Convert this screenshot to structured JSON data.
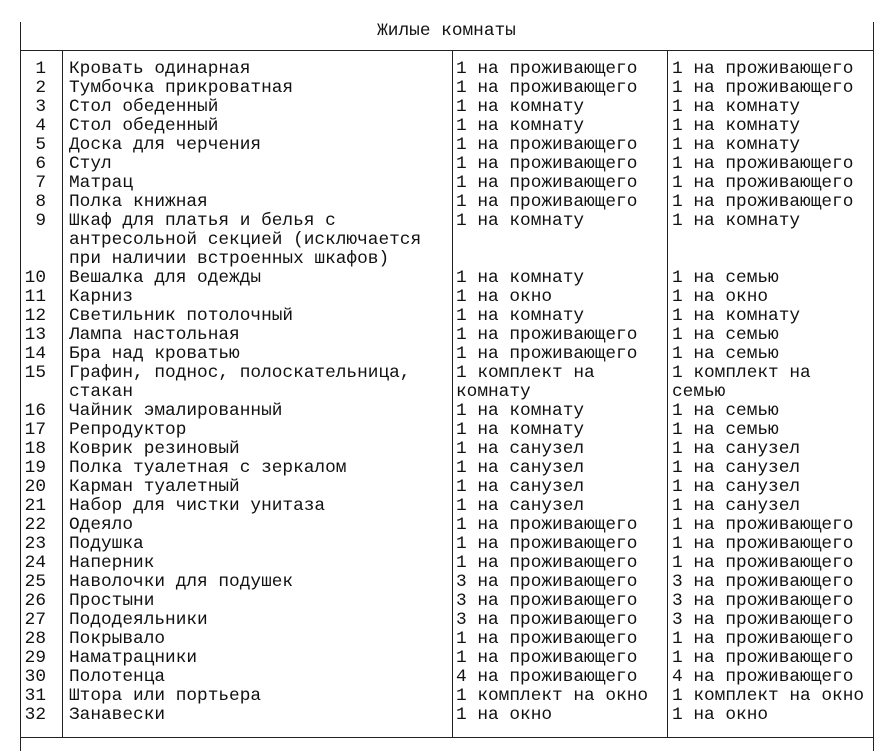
{
  "title": "Жилые комнаты",
  "rows": [
    {
      "n": "1",
      "name": "Кровать одинарная",
      "a": "1 на проживающего",
      "b": "1 на проживающего"
    },
    {
      "n": "2",
      "name": "Тумбочка прикроватная",
      "a": "1 на проживающего",
      "b": "1 на проживающего"
    },
    {
      "n": "3",
      "name": "Стол обеденный",
      "a": "1 на комнату",
      "b": "1 на комнату"
    },
    {
      "n": "4",
      "name": "Стол обеденный",
      "a": "1 на комнату",
      "b": "1 на комнату"
    },
    {
      "n": "5",
      "name": "Доска для черчения",
      "a": "1 на проживающего",
      "b": "1 на комнату"
    },
    {
      "n": "6",
      "name": "Стул",
      "a": "1 на проживающего",
      "b": "1 на проживающего"
    },
    {
      "n": "7",
      "name": "Матрац",
      "a": "1 на проживающего",
      "b": "1 на проживающего"
    },
    {
      "n": "8",
      "name": "Полка книжная",
      "a": "1 на проживающего",
      "b": "1 на проживающего"
    },
    {
      "n": "9",
      "name": "Шкаф для платья и белья с\nантресольной секцией (исключается\nпри наличии встроенных шкафов)",
      "a": "1 на комнату",
      "b": "1 на комнату"
    },
    {
      "n": "10",
      "name": "Вешалка для одежды",
      "a": "1 на комнату",
      "b": "1 на семью"
    },
    {
      "n": "11",
      "name": "Карниз",
      "a": "1 на окно",
      "b": "1 на окно"
    },
    {
      "n": "12",
      "name": "Светильник потолочный",
      "a": "1 на комнату",
      "b": "1 на комнату"
    },
    {
      "n": "13",
      "name": "Лампа настольная",
      "a": "1 на проживающего",
      "b": "1 на семью"
    },
    {
      "n": "14",
      "name": "Бра над кроватью",
      "a": "1 на проживающего",
      "b": "1 на семью"
    },
    {
      "n": "15",
      "name": "Графин, поднос, полоскательница,\nстакан",
      "a": "1 комплект на\nкомнату",
      "b": "1 комплект на\nсемью"
    },
    {
      "n": "16",
      "name": "Чайник эмалированный",
      "a": "1 на комнату",
      "b": "1 на семью"
    },
    {
      "n": "17",
      "name": "Репродуктор",
      "a": "1 на комнату",
      "b": "1 на семью"
    },
    {
      "n": "18",
      "name": "Коврик резиновый",
      "a": "1 на санузел",
      "b": "1 на санузел"
    },
    {
      "n": "19",
      "name": "Полка туалетная с зеркалом",
      "a": "1 на санузел",
      "b": "1 на санузел"
    },
    {
      "n": "20",
      "name": "Карман туалетный",
      "a": "1 на санузел",
      "b": "1 на санузел"
    },
    {
      "n": "21",
      "name": "Набор для чистки унитаза",
      "a": "1 на санузел",
      "b": "1 на санузел"
    },
    {
      "n": "22",
      "name": "Одеяло",
      "a": "1 на проживающего",
      "b": "1 на проживающего"
    },
    {
      "n": "23",
      "name": "Подушка",
      "a": "1 на проживающего",
      "b": "1 на проживающего"
    },
    {
      "n": "24",
      "name": "Наперник",
      "a": "1 на проживающего",
      "b": "1 на проживающего"
    },
    {
      "n": "25",
      "name": "Наволочки для подушек",
      "a": "3 на проживающего",
      "b": "3 на проживающего"
    },
    {
      "n": "26",
      "name": "Простыни",
      "a": "3 на проживающего",
      "b": "3 на проживающего"
    },
    {
      "n": "27",
      "name": "Пододеяльники",
      "a": "3 на проживающего",
      "b": "3 на проживающего"
    },
    {
      "n": "28",
      "name": "Покрывало",
      "a": "1 на проживающего",
      "b": "1 на проживающего"
    },
    {
      "n": "29",
      "name": "Наматрацники",
      "a": "1 на проживающего",
      "b": "1 на проживающего"
    },
    {
      "n": "30",
      "name": "Полотенца",
      "a": "4 на проживающего",
      "b": "4 на проживающего"
    },
    {
      "n": "31",
      "name": "Штора или портьера",
      "a": "1 комплект на окно",
      "b": "1 комплект на окно"
    },
    {
      "n": "32",
      "name": "Занавески",
      "a": "1 на окно",
      "b": "1 на окно"
    }
  ]
}
